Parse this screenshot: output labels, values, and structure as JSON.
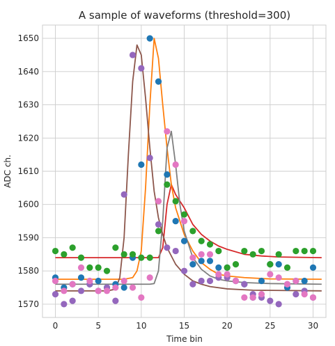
{
  "chart_data": {
    "type": "scatter",
    "title": "A sample of waveforms (threshold=300)",
    "xlabel": "Time bin",
    "ylabel": "ADC ch.",
    "xlim": [
      -1.5,
      31.5
    ],
    "ylim": [
      1566,
      1654
    ],
    "xticks": [
      0,
      5,
      10,
      15,
      20,
      25,
      30
    ],
    "yticks": [
      1570,
      1580,
      1590,
      1600,
      1610,
      1620,
      1630,
      1640,
      1650
    ],
    "grid": true,
    "style": "whitegrid",
    "series": [
      {
        "color": "#1f77b4",
        "points": [
          [
            0,
            1578
          ],
          [
            1,
            1575
          ],
          [
            2,
            1576
          ],
          [
            3,
            1578
          ],
          [
            4,
            1576
          ],
          [
            5,
            1577
          ],
          [
            6,
            1575
          ],
          [
            7,
            1576
          ],
          [
            8,
            1575
          ],
          [
            9,
            1584
          ],
          [
            10,
            1612
          ],
          [
            11,
            1650
          ],
          [
            12,
            1637
          ],
          [
            13,
            1609
          ],
          [
            14,
            1595
          ],
          [
            15,
            1589
          ],
          [
            16,
            1582
          ],
          [
            17,
            1583
          ],
          [
            18,
            1583
          ],
          [
            19,
            1581
          ],
          [
            20,
            1581
          ],
          [
            21,
            1577
          ],
          [
            22,
            1576
          ],
          [
            23,
            1572
          ],
          [
            24,
            1577
          ],
          [
            25,
            1582
          ],
          [
            26,
            1582
          ],
          [
            27,
            1575
          ],
          [
            28,
            1577
          ],
          [
            29,
            1577
          ],
          [
            30,
            1581
          ]
        ]
      },
      {
        "color": "#2ca02c",
        "points": [
          [
            0,
            1586
          ],
          [
            1,
            1585
          ],
          [
            2,
            1587
          ],
          [
            3,
            1584
          ],
          [
            4,
            1581
          ],
          [
            5,
            1581
          ],
          [
            6,
            1580
          ],
          [
            7,
            1587
          ],
          [
            8,
            1585
          ],
          [
            9,
            1585
          ],
          [
            10,
            1584
          ],
          [
            11,
            1584
          ],
          [
            12,
            1592
          ],
          [
            13,
            1606
          ],
          [
            14,
            1601
          ],
          [
            15,
            1597
          ],
          [
            16,
            1592
          ],
          [
            17,
            1589
          ],
          [
            18,
            1588
          ],
          [
            19,
            1586
          ],
          [
            20,
            1581
          ],
          [
            21,
            1582
          ],
          [
            22,
            1586
          ],
          [
            23,
            1585
          ],
          [
            24,
            1586
          ],
          [
            25,
            1582
          ],
          [
            26,
            1585
          ],
          [
            27,
            1581
          ],
          [
            28,
            1586
          ],
          [
            29,
            1586
          ],
          [
            30,
            1586
          ]
        ]
      },
      {
        "color": "#9467bd",
        "points": [
          [
            0,
            1573
          ],
          [
            1,
            1570
          ],
          [
            2,
            1571
          ],
          [
            3,
            1574
          ],
          [
            4,
            1576
          ],
          [
            5,
            1574
          ],
          [
            6,
            1575
          ],
          [
            7,
            1571
          ],
          [
            8,
            1603
          ],
          [
            9,
            1645
          ],
          [
            10,
            1641
          ],
          [
            11,
            1614
          ],
          [
            12,
            1594
          ],
          [
            13,
            1587
          ],
          [
            14,
            1586
          ],
          [
            15,
            1580
          ],
          [
            16,
            1576
          ],
          [
            17,
            1577
          ],
          [
            18,
            1577
          ],
          [
            19,
            1578
          ],
          [
            20,
            1578
          ],
          [
            21,
            1577
          ],
          [
            22,
            1576
          ],
          [
            23,
            1573
          ],
          [
            24,
            1572
          ],
          [
            25,
            1571
          ],
          [
            26,
            1570
          ],
          [
            27,
            1576
          ],
          [
            28,
            1573
          ],
          [
            29,
            1574
          ],
          [
            30,
            1572
          ]
        ]
      },
      {
        "color": "#e377c2",
        "points": [
          [
            0,
            1577
          ],
          [
            1,
            1574
          ],
          [
            2,
            1576
          ],
          [
            3,
            1581
          ],
          [
            4,
            1577
          ],
          [
            5,
            1574
          ],
          [
            6,
            1574
          ],
          [
            7,
            1575
          ],
          [
            8,
            1577
          ],
          [
            9,
            1575
          ],
          [
            10,
            1572
          ],
          [
            11,
            1578
          ],
          [
            12,
            1601
          ],
          [
            13,
            1622
          ],
          [
            14,
            1612
          ],
          [
            15,
            1595
          ],
          [
            16,
            1584
          ],
          [
            17,
            1585
          ],
          [
            18,
            1585
          ],
          [
            19,
            1579
          ],
          [
            20,
            1579
          ],
          [
            21,
            1577
          ],
          [
            22,
            1572
          ],
          [
            23,
            1572
          ],
          [
            24,
            1573
          ],
          [
            25,
            1579
          ],
          [
            26,
            1578
          ],
          [
            27,
            1576
          ],
          [
            28,
            1577
          ],
          [
            29,
            1573
          ],
          [
            30,
            1572
          ]
        ]
      }
    ],
    "fits": [
      {
        "color": "#d62728",
        "points": [
          [
            0,
            1584
          ],
          [
            10,
            1584
          ],
          [
            11,
            1584
          ],
          [
            12,
            1584
          ],
          [
            12.5,
            1587
          ],
          [
            13,
            1600
          ],
          [
            13.5,
            1606
          ],
          [
            14,
            1603
          ],
          [
            15,
            1599
          ],
          [
            16,
            1594
          ],
          [
            17,
            1591
          ],
          [
            18,
            1589
          ],
          [
            19,
            1587.5
          ],
          [
            20,
            1586.5
          ],
          [
            22,
            1585
          ],
          [
            24,
            1584.5
          ],
          [
            26,
            1584.2
          ],
          [
            31,
            1584
          ]
        ]
      },
      {
        "color": "#ff7f0e",
        "points": [
          [
            0,
            1577.5
          ],
          [
            8,
            1577.5
          ],
          [
            9,
            1578
          ],
          [
            9.5,
            1580
          ],
          [
            10,
            1586
          ],
          [
            10.5,
            1605
          ],
          [
            11,
            1630
          ],
          [
            11.5,
            1650
          ],
          [
            12,
            1644
          ],
          [
            12.5,
            1630
          ],
          [
            13,
            1617
          ],
          [
            13.5,
            1606
          ],
          [
            14,
            1599
          ],
          [
            15,
            1591
          ],
          [
            16,
            1586
          ],
          [
            17,
            1582.5
          ],
          [
            18,
            1580.5
          ],
          [
            19,
            1579
          ],
          [
            20,
            1578.5
          ],
          [
            22,
            1578
          ],
          [
            25,
            1577.6
          ],
          [
            31,
            1577.5
          ]
        ]
      },
      {
        "color": "#7f7f7f",
        "points": [
          [
            0,
            1576
          ],
          [
            11,
            1576
          ],
          [
            11.5,
            1576.2
          ],
          [
            12,
            1580
          ],
          [
            12.5,
            1595
          ],
          [
            13,
            1617
          ],
          [
            13.5,
            1622
          ],
          [
            14,
            1612
          ],
          [
            14.5,
            1600
          ],
          [
            15,
            1592
          ],
          [
            16,
            1584
          ],
          [
            17,
            1580.5
          ],
          [
            18,
            1578.5
          ],
          [
            19,
            1577.5
          ],
          [
            20,
            1577
          ],
          [
            22,
            1576.5
          ],
          [
            25,
            1576.2
          ],
          [
            31,
            1576
          ]
        ]
      },
      {
        "color": "#8c564b",
        "points": [
          [
            0,
            1574
          ],
          [
            6,
            1574
          ],
          [
            7,
            1574.5
          ],
          [
            7.5,
            1578
          ],
          [
            8,
            1590
          ],
          [
            8.5,
            1615
          ],
          [
            9,
            1637
          ],
          [
            9.5,
            1648
          ],
          [
            10,
            1645
          ],
          [
            10.5,
            1632
          ],
          [
            11,
            1617
          ],
          [
            11.5,
            1604
          ],
          [
            12,
            1596
          ],
          [
            12.5,
            1591
          ],
          [
            13,
            1587
          ],
          [
            14,
            1582
          ],
          [
            15,
            1579
          ],
          [
            16,
            1577
          ],
          [
            17,
            1576
          ],
          [
            18,
            1575.3
          ],
          [
            20,
            1574.6
          ],
          [
            23,
            1574.2
          ],
          [
            31,
            1574
          ]
        ]
      }
    ]
  }
}
